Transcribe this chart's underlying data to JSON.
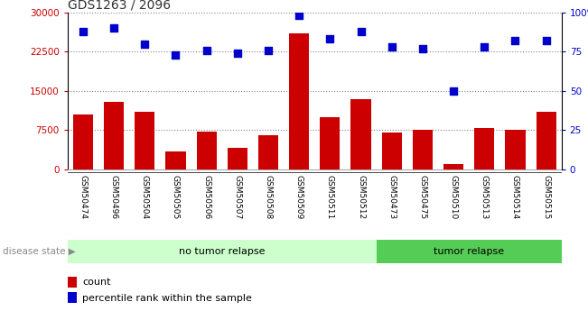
{
  "title": "GDS1263 / 2096",
  "samples": [
    "GSM50474",
    "GSM50496",
    "GSM50504",
    "GSM50505",
    "GSM50506",
    "GSM50507",
    "GSM50508",
    "GSM50509",
    "GSM50511",
    "GSM50512",
    "GSM50473",
    "GSM50475",
    "GSM50510",
    "GSM50513",
    "GSM50514",
    "GSM50515"
  ],
  "counts": [
    10500,
    13000,
    11000,
    3500,
    7200,
    4200,
    6500,
    26000,
    10000,
    13500,
    7000,
    7500,
    1000,
    8000,
    7500,
    11000
  ],
  "percentiles": [
    88,
    90,
    80,
    73,
    76,
    74,
    76,
    98,
    83,
    88,
    78,
    77,
    50,
    78,
    82,
    82
  ],
  "no_tumor_count": 10,
  "tumor_count": 6,
  "left_yticks": [
    0,
    7500,
    15000,
    22500,
    30000
  ],
  "right_yticks": [
    0,
    25,
    50,
    75,
    100
  ],
  "bar_color": "#cc0000",
  "dot_color": "#0000cc",
  "no_tumor_bg": "#ccffcc",
  "tumor_bg": "#55cc55",
  "label_bg": "#cccccc",
  "dotted_grid_color": "#888888",
  "title_color": "#333333",
  "legend_bar_label": "count",
  "legend_dot_label": "percentile rank within the sample"
}
